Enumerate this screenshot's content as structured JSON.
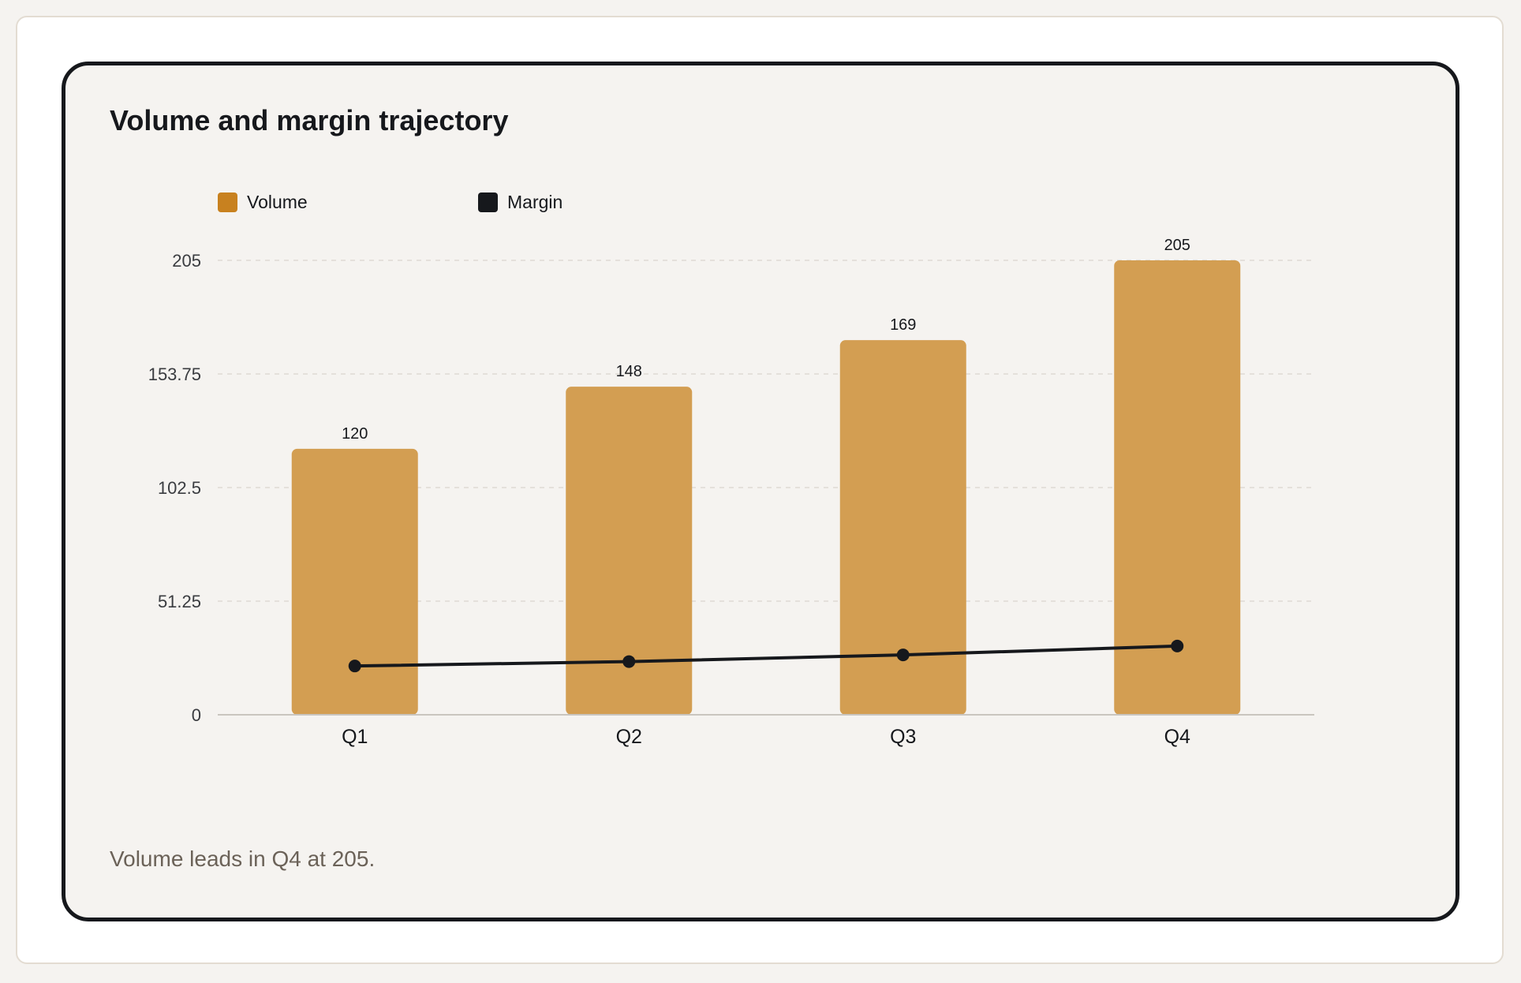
{
  "chart_data": {
    "type": "bar",
    "title": "Volume and margin trajectory",
    "caption": "Volume leads in Q4 at 205.",
    "categories": [
      "Q1",
      "Q2",
      "Q3",
      "Q4"
    ],
    "ylim": [
      0,
      205
    ],
    "yticks": [
      "0",
      "51.25",
      "102.5",
      "153.75",
      "205"
    ],
    "grid": true,
    "legend_position": "top-left",
    "series": [
      {
        "name": "Volume",
        "type": "bar",
        "values": [
          120,
          148,
          169,
          205
        ],
        "value_labels": [
          "120",
          "148",
          "169",
          "205"
        ],
        "color": "#d39e52",
        "legend_color": "#c8811f"
      },
      {
        "name": "Margin",
        "type": "line",
        "values": [
          22,
          24,
          27,
          31
        ],
        "color": "#16181c"
      }
    ]
  }
}
